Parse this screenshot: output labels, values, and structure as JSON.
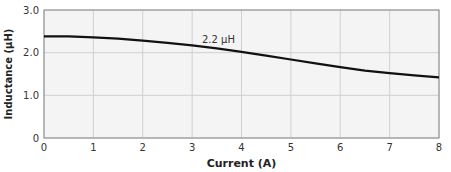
{
  "chart_data": {
    "type": "line",
    "xlabel": "Current (A)",
    "ylabel": "Inductance (μH)",
    "x": [
      0,
      0.5,
      1.0,
      1.5,
      2.0,
      2.5,
      3.0,
      3.5,
      4.0,
      4.5,
      5.0,
      5.5,
      6.0,
      6.5,
      7.0,
      7.5,
      8.0
    ],
    "values": [
      2.38,
      2.38,
      2.36,
      2.33,
      2.28,
      2.23,
      2.17,
      2.1,
      2.02,
      1.93,
      1.84,
      1.75,
      1.66,
      1.58,
      1.52,
      1.47,
      1.42
    ],
    "color": "#111111",
    "xlim": [
      0,
      8
    ],
    "ylim": [
      0,
      3.0
    ],
    "xticks": [
      0,
      1,
      2,
      3,
      4,
      5,
      6,
      7,
      8
    ],
    "yticks": [
      0,
      {
        "value": 1.0,
        "label": "1.0"
      },
      {
        "value": 2.0,
        "label": "2.0"
      },
      {
        "value": 3.0,
        "label": "3.0"
      }
    ],
    "grid": true,
    "annotations": [
      {
        "text": "2.2 μH",
        "x": 3.2,
        "y": 2.22
      }
    ]
  }
}
